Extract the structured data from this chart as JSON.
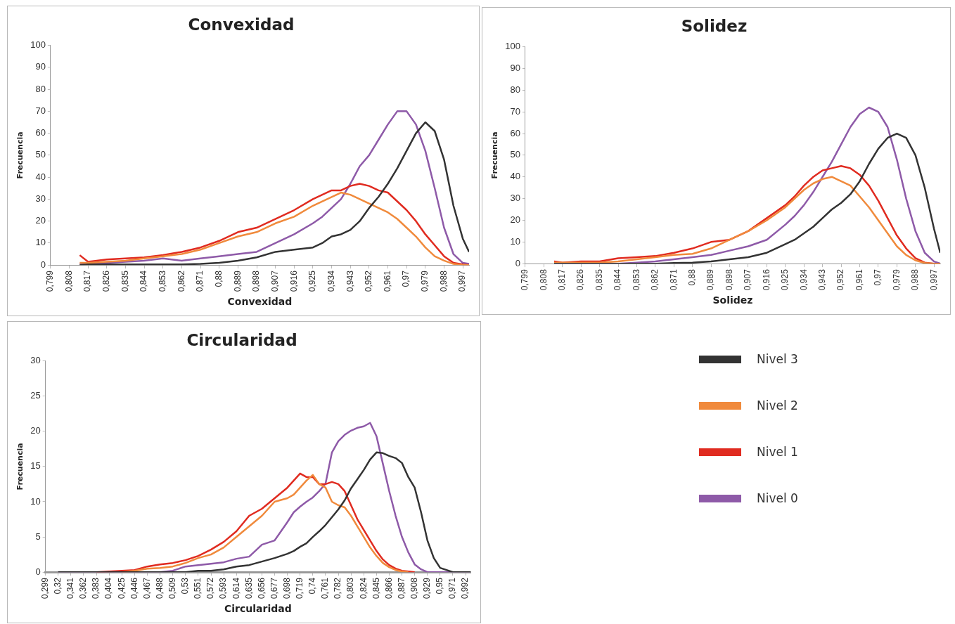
{
  "chart_data": [
    {
      "type": "line",
      "title": "Convexidad",
      "xlabel": "Convexidad",
      "ylabel": "Frecuencia",
      "xlim": [
        0.799,
        1.0
      ],
      "ylim": [
        0,
        100
      ],
      "yticks": [
        0,
        10,
        20,
        30,
        40,
        50,
        60,
        70,
        80,
        90,
        100
      ],
      "xticks": [
        {
          "value": 0.799,
          "label": "0,799"
        },
        {
          "value": 0.808,
          "label": "0,808"
        },
        {
          "value": 0.817,
          "label": "0,817"
        },
        {
          "value": 0.826,
          "label": "0,826"
        },
        {
          "value": 0.835,
          "label": "0,835"
        },
        {
          "value": 0.844,
          "label": "0,844"
        },
        {
          "value": 0.853,
          "label": "0,853"
        },
        {
          "value": 0.862,
          "label": "0,862"
        },
        {
          "value": 0.871,
          "label": "0,871"
        },
        {
          "value": 0.88,
          "label": "0,88"
        },
        {
          "value": 0.889,
          "label": "0,889"
        },
        {
          "value": 0.898,
          "label": "0,898"
        },
        {
          "value": 0.907,
          "label": "0,907"
        },
        {
          "value": 0.916,
          "label": "0,916"
        },
        {
          "value": 0.925,
          "label": "0,925"
        },
        {
          "value": 0.934,
          "label": "0,934"
        },
        {
          "value": 0.943,
          "label": "0,943"
        },
        {
          "value": 0.952,
          "label": "0,952"
        },
        {
          "value": 0.961,
          "label": "0,961"
        },
        {
          "value": 0.97,
          "label": "0,97"
        },
        {
          "value": 0.979,
          "label": "0,979"
        },
        {
          "value": 0.988,
          "label": "0,988"
        },
        {
          "value": 0.997,
          "label": "0,997"
        }
      ],
      "x": [
        0.813,
        0.817,
        0.826,
        0.835,
        0.844,
        0.853,
        0.862,
        0.871,
        0.88,
        0.889,
        0.898,
        0.907,
        0.916,
        0.925,
        0.9295,
        0.934,
        0.9385,
        0.943,
        0.9475,
        0.952,
        0.9565,
        0.961,
        0.9655,
        0.97,
        0.9745,
        0.979,
        0.9835,
        0.988,
        0.9925,
        0.997,
        1.0
      ],
      "series": [
        {
          "color": "#333333",
          "values": [
            0,
            0.3,
            0.3,
            0.3,
            0.3,
            0.3,
            0.3,
            0.5,
            1,
            2,
            3.5,
            6,
            7,
            8,
            10,
            13,
            14,
            16,
            20,
            26,
            31,
            37,
            44,
            52,
            60,
            65,
            61,
            48,
            27,
            12,
            6
          ]
        },
        {
          "color": "#f08a3c",
          "values": [
            1,
            1,
            1.5,
            2,
            3,
            4,
            5,
            7,
            10,
            13,
            15,
            19,
            22,
            27,
            29,
            31,
            33,
            32,
            30,
            28,
            26,
            24,
            21,
            17,
            13,
            8,
            4,
            2,
            0.5,
            0,
            0
          ]
        },
        {
          "color": "#e02b20",
          "values": [
            4.5,
            1.5,
            2.5,
            3,
            3.5,
            4.5,
            6,
            8,
            11,
            15,
            17,
            21,
            25,
            30,
            32,
            34,
            34,
            36,
            37,
            36,
            34,
            33,
            29,
            25,
            20,
            14,
            9,
            4,
            1,
            0.3,
            0
          ]
        },
        {
          "color": "#8e5aa8",
          "values": [
            0.5,
            1,
            1,
            1.5,
            2,
            3,
            2,
            3,
            4,
            5,
            6,
            10,
            14,
            19,
            22,
            26,
            30,
            37,
            45,
            50,
            57,
            64,
            70,
            70,
            64,
            52,
            35,
            17,
            5,
            1,
            0.5
          ]
        }
      ]
    },
    {
      "type": "line",
      "title": "Solidez",
      "xlabel": "Solidez",
      "ylabel": "Frecuencia",
      "xlim": [
        0.799,
        1.0
      ],
      "ylim": [
        0,
        100
      ],
      "yticks": [
        0,
        10,
        20,
        30,
        40,
        50,
        60,
        70,
        80,
        90,
        100
      ],
      "xticks": [
        {
          "value": 0.799,
          "label": "0,799"
        },
        {
          "value": 0.808,
          "label": "0,808"
        },
        {
          "value": 0.817,
          "label": "0,817"
        },
        {
          "value": 0.826,
          "label": "0,826"
        },
        {
          "value": 0.835,
          "label": "0,835"
        },
        {
          "value": 0.844,
          "label": "0,844"
        },
        {
          "value": 0.853,
          "label": "0,853"
        },
        {
          "value": 0.862,
          "label": "0,862"
        },
        {
          "value": 0.871,
          "label": "0,871"
        },
        {
          "value": 0.88,
          "label": "0,88"
        },
        {
          "value": 0.889,
          "label": "0,889"
        },
        {
          "value": 0.898,
          "label": "0,898"
        },
        {
          "value": 0.907,
          "label": "0,907"
        },
        {
          "value": 0.916,
          "label": "0,916"
        },
        {
          "value": 0.925,
          "label": "0,925"
        },
        {
          "value": 0.934,
          "label": "0,934"
        },
        {
          "value": 0.943,
          "label": "0,943"
        },
        {
          "value": 0.952,
          "label": "0,952"
        },
        {
          "value": 0.961,
          "label": "0,961"
        },
        {
          "value": 0.97,
          "label": "0,97"
        },
        {
          "value": 0.979,
          "label": "0,979"
        },
        {
          "value": 0.988,
          "label": "0,988"
        },
        {
          "value": 0.997,
          "label": "0,997"
        }
      ],
      "x": [
        0.813,
        0.817,
        0.826,
        0.835,
        0.844,
        0.853,
        0.862,
        0.871,
        0.88,
        0.889,
        0.898,
        0.907,
        0.916,
        0.925,
        0.9295,
        0.934,
        0.9385,
        0.943,
        0.9475,
        0.952,
        0.9565,
        0.961,
        0.9655,
        0.97,
        0.9745,
        0.979,
        0.9835,
        0.988,
        0.9925,
        0.997,
        1.0
      ],
      "series": [
        {
          "color": "#333333",
          "values": [
            0,
            0,
            0,
            0,
            0,
            0,
            0,
            0.3,
            0.5,
            1,
            2,
            3,
            5,
            9,
            11,
            14,
            17,
            21,
            25,
            28,
            32,
            38,
            46,
            53,
            58,
            60,
            58,
            50,
            35,
            16,
            5
          ]
        },
        {
          "color": "#f08a3c",
          "values": [
            0.5,
            0.5,
            0.5,
            0.5,
            1,
            2,
            3,
            4,
            4.5,
            7,
            11,
            15,
            20,
            26,
            30,
            34,
            37,
            39,
            40,
            38,
            36,
            31,
            26,
            20,
            14,
            8,
            4,
            1.5,
            0.3,
            0,
            0
          ]
        },
        {
          "color": "#e02b20",
          "values": [
            1,
            0.5,
            1,
            1,
            2.5,
            3,
            3.5,
            5,
            7,
            10,
            11,
            15,
            21,
            27,
            31,
            36,
            40,
            43,
            44,
            45,
            44,
            41,
            36,
            29,
            21,
            13,
            7,
            2.5,
            0.5,
            0,
            0
          ]
        },
        {
          "color": "#8e5aa8",
          "values": [
            0,
            0,
            0,
            0,
            0,
            0.5,
            1,
            2,
            3,
            4,
            6,
            8,
            11,
            18,
            22,
            27,
            33,
            40,
            47,
            55,
            63,
            69,
            72,
            70,
            63,
            48,
            30,
            15,
            5,
            1,
            0
          ]
        }
      ]
    },
    {
      "type": "line",
      "title": "Circularidad",
      "xlabel": "Circularidad",
      "ylabel": "Frecuencia",
      "xlim": [
        0.299,
        1.0
      ],
      "ylim": [
        0,
        30
      ],
      "yticks": [
        0,
        5,
        10,
        15,
        20,
        25,
        30
      ],
      "legend": "right",
      "xticks": [
        {
          "value": 0.299,
          "label": "0,299"
        },
        {
          "value": 0.32,
          "label": "0,32"
        },
        {
          "value": 0.341,
          "label": "0,341"
        },
        {
          "value": 0.362,
          "label": "0,362"
        },
        {
          "value": 0.383,
          "label": "0,383"
        },
        {
          "value": 0.404,
          "label": "0,404"
        },
        {
          "value": 0.425,
          "label": "0,425"
        },
        {
          "value": 0.446,
          "label": "0,446"
        },
        {
          "value": 0.467,
          "label": "0,467"
        },
        {
          "value": 0.488,
          "label": "0,488"
        },
        {
          "value": 0.509,
          "label": "0,509"
        },
        {
          "value": 0.53,
          "label": "0,53"
        },
        {
          "value": 0.551,
          "label": "0,551"
        },
        {
          "value": 0.572,
          "label": "0,572"
        },
        {
          "value": 0.593,
          "label": "0,593"
        },
        {
          "value": 0.614,
          "label": "0,614"
        },
        {
          "value": 0.635,
          "label": "0,635"
        },
        {
          "value": 0.656,
          "label": "0,656"
        },
        {
          "value": 0.677,
          "label": "0,677"
        },
        {
          "value": 0.698,
          "label": "0,698"
        },
        {
          "value": 0.719,
          "label": "0,719"
        },
        {
          "value": 0.74,
          "label": "0,74"
        },
        {
          "value": 0.761,
          "label": "0,761"
        },
        {
          "value": 0.782,
          "label": "0,782"
        },
        {
          "value": 0.803,
          "label": "0,803"
        },
        {
          "value": 0.824,
          "label": "0,824"
        },
        {
          "value": 0.845,
          "label": "0,845"
        },
        {
          "value": 0.866,
          "label": "0,866"
        },
        {
          "value": 0.887,
          "label": "0,887"
        },
        {
          "value": 0.908,
          "label": "0,908"
        },
        {
          "value": 0.929,
          "label": "0,929"
        },
        {
          "value": 0.95,
          "label": "0,95"
        },
        {
          "value": 0.971,
          "label": "0,971"
        },
        {
          "value": 0.992,
          "label": "0,992"
        }
      ],
      "x": [
        0.32,
        0.341,
        0.362,
        0.383,
        0.404,
        0.425,
        0.446,
        0.467,
        0.488,
        0.509,
        0.53,
        0.551,
        0.572,
        0.593,
        0.614,
        0.635,
        0.656,
        0.677,
        0.698,
        0.7085,
        0.719,
        0.7295,
        0.74,
        0.7505,
        0.761,
        0.7715,
        0.782,
        0.7925,
        0.803,
        0.8135,
        0.824,
        0.8345,
        0.845,
        0.8555,
        0.866,
        0.8765,
        0.887,
        0.8975,
        0.908,
        0.9185,
        0.929,
        0.9395,
        0.95,
        0.971,
        0.992,
        1.0
      ],
      "series": [
        {
          "name": "Nivel 3",
          "color": "#333333",
          "values": [
            0,
            0,
            0,
            0,
            0,
            0,
            0,
            0,
            0,
            0,
            0,
            0.2,
            0.2,
            0.4,
            0.8,
            1,
            1.5,
            2,
            2.6,
            3,
            3.6,
            4.1,
            5,
            5.8,
            6.7,
            7.8,
            8.9,
            10.2,
            11.9,
            13.2,
            14.5,
            16,
            17,
            16.9,
            16.5,
            16.2,
            15.5,
            13.5,
            12,
            8.5,
            4.5,
            2,
            0.6,
            0,
            0,
            0
          ]
        },
        {
          "name": "Nivel 2",
          "color": "#f08a3c",
          "values": [
            null,
            null,
            null,
            null,
            null,
            0,
            0.2,
            0.5,
            0.6,
            0.8,
            1.3,
            2,
            2.5,
            3.5,
            5,
            6.5,
            8,
            10,
            10.5,
            11,
            12,
            13,
            13.8,
            12.5,
            12,
            10,
            9.5,
            9.2,
            8,
            6.5,
            5,
            3.5,
            2.3,
            1.3,
            0.7,
            0.3,
            0.1,
            0,
            null,
            null,
            null,
            null,
            null,
            null,
            null,
            null
          ]
        },
        {
          "name": "Nivel 1",
          "color": "#e02b20",
          "values": [
            null,
            null,
            null,
            0,
            0.1,
            0.2,
            0.3,
            0.8,
            1.1,
            1.3,
            1.7,
            2.3,
            3.2,
            4.3,
            5.8,
            8,
            9,
            10.5,
            12,
            13,
            14,
            13.5,
            13.5,
            12.5,
            12.5,
            12.8,
            12.5,
            11.5,
            9.5,
            7.5,
            6,
            4.5,
            3,
            1.8,
            1,
            0.5,
            0.2,
            0.1,
            0,
            null,
            null,
            null,
            null,
            null,
            null,
            null
          ]
        },
        {
          "name": "Nivel 0",
          "color": "#8e5aa8",
          "values": [
            0,
            0,
            0,
            0,
            0,
            0,
            0,
            0,
            0,
            0.2,
            0.8,
            1,
            1.2,
            1.4,
            1.9,
            2.2,
            3.9,
            4.5,
            7.1,
            8.5,
            9.3,
            10,
            10.6,
            11.5,
            12.6,
            17,
            18.6,
            19.5,
            20.1,
            20.5,
            20.7,
            21.2,
            19.3,
            15.4,
            11.5,
            8,
            5,
            2.8,
            1.1,
            0.4,
            0,
            0,
            0,
            0,
            0,
            0
          ]
        }
      ]
    }
  ]
}
